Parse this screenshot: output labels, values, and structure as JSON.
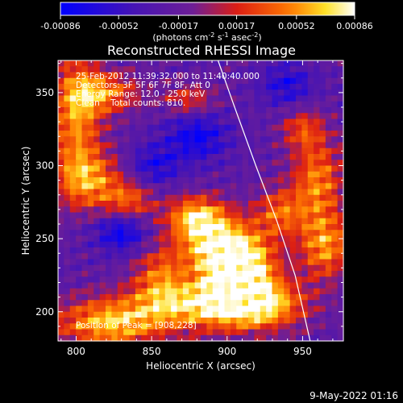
{
  "chart_data": {
    "type": "heatmap",
    "title": "Reconstructed RHESSI Image",
    "xlabel": "Heliocentric X (arcsec)",
    "ylabel": "Heliocentric Y (arcsec)",
    "xlim": [
      788,
      977
    ],
    "ylim": [
      180,
      372
    ],
    "x_ticks": [
      800,
      850,
      900,
      950
    ],
    "y_ticks": [
      200,
      250,
      300,
      350
    ],
    "colorbar": {
      "range": [
        -0.00086,
        0.00086
      ],
      "ticks": [
        -0.00086,
        -0.00052,
        -0.00017,
        0.00017,
        0.00052,
        0.00086
      ],
      "tick_labels": [
        "-0.00086",
        "-0.00052",
        "-0.00017",
        "0.00017",
        "0.00052",
        "0.00086"
      ],
      "unit_label_parts": [
        "(photons cm",
        "-2",
        " s",
        "-1",
        " asec",
        "-2",
        ")"
      ]
    },
    "annotations": {
      "time_range": "25-Feb-2012 11:39:32.000 to 11:40:40.000",
      "detectors": "Detectors: 3F 5F 6F 7F 8F, Att 0",
      "energy_range": "Energy Range: 12.0 - 25.0 keV",
      "method_counts": "Clean    Total counts: 810.",
      "peak": "Position of Peak = [908,228]"
    },
    "peak": {
      "x": 908,
      "y": 228
    },
    "limb": [
      [
        894,
        372
      ],
      [
        905,
        340
      ],
      [
        919,
        300
      ],
      [
        933,
        262
      ],
      [
        945,
        225
      ],
      [
        955,
        180
      ]
    ],
    "hot_regions": [
      {
        "x": 908,
        "y": 228,
        "sx": 16,
        "sy": 14,
        "amp": 1.0
      },
      {
        "x": 895,
        "y": 245,
        "sx": 20,
        "sy": 14,
        "amp": 0.85
      },
      {
        "x": 880,
        "y": 265,
        "sx": 14,
        "sy": 10,
        "amp": 0.8
      },
      {
        "x": 920,
        "y": 205,
        "sx": 22,
        "sy": 12,
        "amp": 0.85
      },
      {
        "x": 880,
        "y": 205,
        "sx": 30,
        "sy": 12,
        "amp": 0.75
      },
      {
        "x": 822,
        "y": 192,
        "sx": 26,
        "sy": 12,
        "amp": 0.8
      },
      {
        "x": 800,
        "y": 335,
        "sx": 12,
        "sy": 30,
        "amp": 0.7
      },
      {
        "x": 820,
        "y": 350,
        "sx": 16,
        "sy": 10,
        "amp": 0.6
      },
      {
        "x": 808,
        "y": 290,
        "sx": 16,
        "sy": 14,
        "amp": 0.65
      },
      {
        "x": 835,
        "y": 275,
        "sx": 12,
        "sy": 10,
        "amp": 0.55
      },
      {
        "x": 960,
        "y": 290,
        "sx": 12,
        "sy": 20,
        "amp": 0.65
      },
      {
        "x": 965,
        "y": 245,
        "sx": 12,
        "sy": 16,
        "amp": 0.7
      },
      {
        "x": 935,
        "y": 268,
        "sx": 12,
        "sy": 12,
        "amp": 0.55
      },
      {
        "x": 855,
        "y": 225,
        "sx": 12,
        "sy": 14,
        "amp": 0.5
      },
      {
        "x": 875,
        "y": 345,
        "sx": 12,
        "sy": 8,
        "amp": 0.45
      },
      {
        "x": 950,
        "y": 325,
        "sx": 10,
        "sy": 10,
        "amp": 0.45
      }
    ],
    "cold_regions": [
      {
        "x": 830,
        "y": 255,
        "sx": 12,
        "sy": 10,
        "amp": 0.55
      },
      {
        "x": 880,
        "y": 320,
        "sx": 14,
        "sy": 12,
        "amp": 0.5
      },
      {
        "x": 852,
        "y": 300,
        "sx": 12,
        "sy": 10,
        "amp": 0.4
      },
      {
        "x": 940,
        "y": 355,
        "sx": 12,
        "sy": 10,
        "amp": 0.4
      }
    ]
  },
  "footer": {
    "date": "9-May-2022 01:16"
  }
}
